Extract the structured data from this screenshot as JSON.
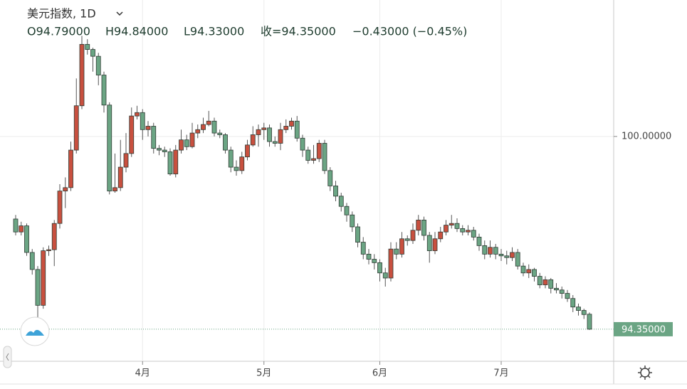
{
  "chart_data": {
    "type": "candlestick",
    "title": "美元指数, 1D",
    "header_values": [
      "O94.79000",
      "H94.84000",
      "L94.33000",
      "收=94.35000",
      "−0.43000 (−0.45%)"
    ],
    "up_color": "#c8503f",
    "down_color": "#6ba584",
    "grid": true,
    "categories": [
      null,
      null,
      null,
      null,
      null,
      null,
      null,
      null,
      null,
      null,
      null,
      null,
      null,
      null,
      null,
      null,
      null,
      null,
      null,
      null,
      null,
      null,
      null,
      "4月",
      null,
      null,
      null,
      null,
      null,
      null,
      null,
      null,
      null,
      null,
      null,
      null,
      null,
      null,
      null,
      null,
      null,
      null,
      null,
      null,
      null,
      "5月",
      null,
      null,
      null,
      null,
      null,
      null,
      null,
      null,
      null,
      null,
      null,
      null,
      null,
      null,
      null,
      null,
      null,
      null,
      null,
      null,
      "6月",
      null,
      null,
      null,
      null,
      null,
      null,
      null,
      null,
      null,
      null,
      null,
      null,
      null,
      null,
      null,
      null,
      null,
      null,
      null,
      null,
      null,
      "7月",
      null,
      null,
      null,
      null,
      null,
      null,
      null,
      null,
      null,
      null,
      null,
      null,
      null,
      null,
      null,
      null
    ],
    "open": [
      97.58,
      97.2,
      97.38,
      96.6,
      96.1,
      95.05,
      96.65,
      96.68,
      97.45,
      98.4,
      98.5,
      99.6,
      100.9,
      102.7,
      102.55,
      102.35,
      101.8,
      100.92,
      98.4,
      98.5,
      99.1,
      99.5,
      100.6,
      100.7,
      100.2,
      100.3,
      99.65,
      99.6,
      99.55,
      98.9,
      99.6,
      99.9,
      99.7,
      100.1,
      100.2,
      100.35,
      100.45,
      100.1,
      100.05,
      99.6,
      99.1,
      99.0,
      99.4,
      99.75,
      100.05,
      100.2,
      100.25,
      99.85,
      99.8,
      100.2,
      100.3,
      100.45,
      99.95,
      99.6,
      99.3,
      99.35,
      99.8,
      99.0,
      98.55,
      98.25,
      97.95,
      97.7,
      97.35,
      96.9,
      96.55,
      96.4,
      96.3,
      96.0,
      95.85,
      96.7,
      96.55,
      97.0,
      96.95,
      97.25,
      97.55,
      97.1,
      96.65,
      97.0,
      97.2,
      97.4,
      97.45,
      97.3,
      97.2,
      97.25,
      97.05,
      96.8,
      96.55,
      96.75,
      96.55,
      96.5,
      96.45,
      96.6,
      96.2,
      96.0,
      96.1,
      95.9,
      95.65,
      95.8,
      95.55,
      95.5,
      95.4,
      95.25,
      95.0,
      94.9,
      94.79
    ],
    "high": [
      97.7,
      97.5,
      97.45,
      96.7,
      96.2,
      96.75,
      96.8,
      97.55,
      98.6,
      98.8,
      99.85,
      101.7,
      102.95,
      102.85,
      102.6,
      102.45,
      101.9,
      101.0,
      99.5,
      99.9,
      100.1,
      100.85,
      100.9,
      100.8,
      100.45,
      100.4,
      99.75,
      99.7,
      99.65,
      99.75,
      100.2,
      100.05,
      100.4,
      100.35,
      100.55,
      100.75,
      100.55,
      100.2,
      100.1,
      99.7,
      99.3,
      99.55,
      99.9,
      100.3,
      100.35,
      100.4,
      100.35,
      100.0,
      100.4,
      100.5,
      100.55,
      100.6,
      100.05,
      99.7,
      99.75,
      99.9,
      99.9,
      99.1,
      98.7,
      98.35,
      98.05,
      97.8,
      97.45,
      97.05,
      96.7,
      96.55,
      96.4,
      96.15,
      96.9,
      96.9,
      97.2,
      97.1,
      97.45,
      97.7,
      97.65,
      97.2,
      97.2,
      97.35,
      97.55,
      97.7,
      97.6,
      97.4,
      97.4,
      97.35,
      97.15,
      96.95,
      96.95,
      96.85,
      96.7,
      96.65,
      96.75,
      96.7,
      96.3,
      96.25,
      96.15,
      96.0,
      95.9,
      95.85,
      95.7,
      95.6,
      95.5,
      95.35,
      95.1,
      94.95,
      94.84
    ],
    "low": [
      97.1,
      97.1,
      96.5,
      95.95,
      94.68,
      94.95,
      96.5,
      96.2,
      97.3,
      97.9,
      98.4,
      99.5,
      100.8,
      102.4,
      101.9,
      101.5,
      100.7,
      98.3,
      98.35,
      98.4,
      98.95,
      99.4,
      100.5,
      99.9,
      100.0,
      99.5,
      99.45,
      99.4,
      98.85,
      98.8,
      99.5,
      99.6,
      99.65,
      99.95,
      100.1,
      100.3,
      100.0,
      99.95,
      99.5,
      98.95,
      98.85,
      98.9,
      99.3,
      99.7,
      99.7,
      99.9,
      99.7,
      99.7,
      99.6,
      100.1,
      100.2,
      99.85,
      99.4,
      99.2,
      99.2,
      99.25,
      98.9,
      98.4,
      98.1,
      97.8,
      97.5,
      97.2,
      96.75,
      96.4,
      96.25,
      96.1,
      95.75,
      95.6,
      95.75,
      96.4,
      96.45,
      96.8,
      96.85,
      97.1,
      96.95,
      96.3,
      96.55,
      96.9,
      97.1,
      97.3,
      97.2,
      97.1,
      97.1,
      96.95,
      96.65,
      96.4,
      96.45,
      96.4,
      96.35,
      96.25,
      96.35,
      96.1,
      95.9,
      95.85,
      95.75,
      95.55,
      95.55,
      95.4,
      95.4,
      95.25,
      95.15,
      94.85,
      94.75,
      94.65,
      94.33
    ],
    "close": [
      97.2,
      97.38,
      96.6,
      96.1,
      95.05,
      96.65,
      96.68,
      97.45,
      98.4,
      98.5,
      99.6,
      100.9,
      102.7,
      102.55,
      102.35,
      101.8,
      100.92,
      98.4,
      98.5,
      99.1,
      99.5,
      100.6,
      100.7,
      100.2,
      100.3,
      99.65,
      99.6,
      99.55,
      98.9,
      99.6,
      99.9,
      99.7,
      100.1,
      100.2,
      100.35,
      100.45,
      100.1,
      100.05,
      99.6,
      99.1,
      99.0,
      99.4,
      99.75,
      100.05,
      100.2,
      100.25,
      99.85,
      99.8,
      100.2,
      100.3,
      100.45,
      99.95,
      99.6,
      99.3,
      99.35,
      99.8,
      99.0,
      98.55,
      98.25,
      97.95,
      97.7,
      97.35,
      96.9,
      96.55,
      96.4,
      96.3,
      96.0,
      95.85,
      96.7,
      96.55,
      97.0,
      96.95,
      97.25,
      97.55,
      97.1,
      96.65,
      97.0,
      97.2,
      97.4,
      97.45,
      97.3,
      97.2,
      97.25,
      97.05,
      96.8,
      96.55,
      96.75,
      96.55,
      96.5,
      96.45,
      96.6,
      96.2,
      96.0,
      96.1,
      95.9,
      95.65,
      95.8,
      95.55,
      95.5,
      95.4,
      95.25,
      95.0,
      94.9,
      94.78,
      94.35
    ],
    "ylim": [
      93.41,
      104.0
    ],
    "yticks": [
      {
        "value": 100,
        "label": "100.00000"
      }
    ],
    "last_price": {
      "value": 94.35,
      "label": "94.35000"
    }
  }
}
